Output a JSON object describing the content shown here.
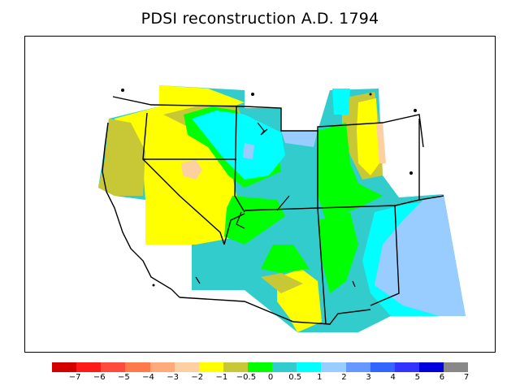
{
  "title": "PDSI reconstruction A.D. 1794",
  "legend": {
    "colors": [
      "#d40000",
      "#ff1a1a",
      "#ff4b3e",
      "#ff7a4a",
      "#ffaa7a",
      "#fdd0a2",
      "#ffff00",
      "#c8c837",
      "#00ff00",
      "#33cccc",
      "#00ffff",
      "#99ccff",
      "#6699ff",
      "#3366ff",
      "#3333ff",
      "#0000dd",
      "#888888"
    ],
    "labels": [
      "−7",
      "−6",
      "−5",
      "−4",
      "−3",
      "−2",
      "−1",
      "−0.5",
      "0",
      "0.5",
      "1",
      "2",
      "3",
      "4",
      "5",
      "6",
      "7"
    ]
  },
  "palette": {
    "yellow": "#ffff00",
    "olive": "#c8c837",
    "green": "#00ff00",
    "teal": "#33cccc",
    "cyan": "#00ffff",
    "lightblue": "#99ccff",
    "peach": "#fdd0a2"
  }
}
